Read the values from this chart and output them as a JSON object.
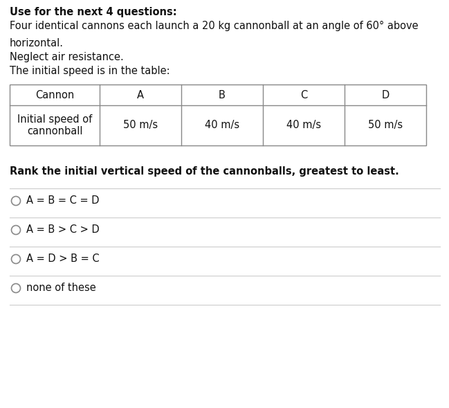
{
  "title_lines": [
    "Use for the next 4 questions:",
    "Four identical cannons each launch a 20 kg cannonball at an angle of 60° above",
    "horizontal.",
    "Neglect air resistance.",
    "The initial speed is in the table:"
  ],
  "table": {
    "row1": [
      "Cannon",
      "A",
      "B",
      "C",
      "D"
    ],
    "row2_line1": "Initial speed of",
    "row2_line2": "cannonball",
    "speeds": [
      "50 m/s",
      "40 m/s",
      "40 m/s",
      "50 m/s"
    ]
  },
  "question": "Rank the initial vertical speed of the cannonballs, greatest to least.",
  "options": [
    "A = B = C = D",
    "A = B > C > D",
    "A = D > B = C",
    "none of these"
  ],
  "bg_color": "#ffffff",
  "text_color": "#111111",
  "font_size": 10.5
}
